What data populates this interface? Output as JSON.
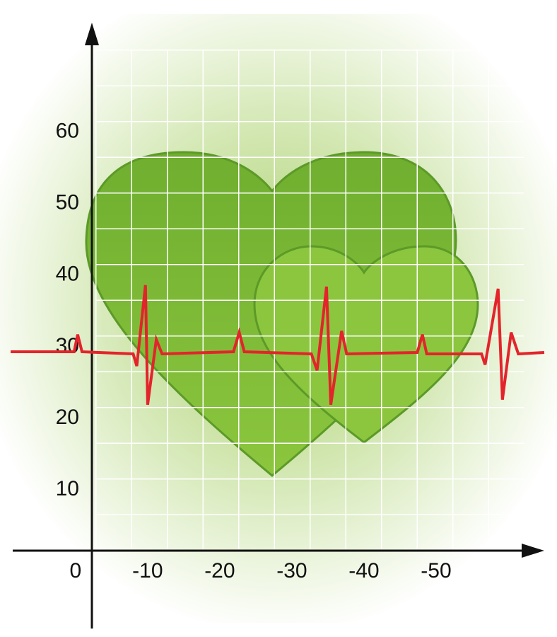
{
  "chart_data": {
    "type": "line",
    "xlim": [
      9,
      -65
    ],
    "ylim": [
      1.5,
      74.5
    ],
    "xticks": [
      0,
      -10,
      -20,
      -30,
      -40,
      -50
    ],
    "yticks": [
      10,
      20,
      30,
      40,
      50,
      60
    ],
    "series": [
      {
        "color": "#e3242b",
        "x": [
          9.0,
          0.2,
          -0.3,
          -0.9,
          -8.0,
          -8.5,
          -9.7,
          -10.0,
          -11.2,
          -12.0,
          -21.9,
          -22.7,
          -23.4,
          -32.7,
          -33.5,
          -34.8,
          -35.4,
          -36.9,
          -37.6,
          -47.4,
          -48.1,
          -48.7,
          -56.3,
          -56.8,
          -58.6,
          -59.2,
          -60.4,
          -61.4,
          -65.0
        ],
        "values": [
          29.3,
          29.3,
          31.7,
          29.3,
          29.0,
          27.3,
          38.6,
          21.9,
          31.0,
          29.0,
          29.3,
          32.0,
          29.3,
          29.0,
          26.7,
          38.4,
          21.9,
          32.2,
          29.0,
          29.2,
          31.7,
          29.0,
          29.0,
          27.5,
          38.1,
          22.6,
          32.0,
          29.0,
          29.2
        ]
      }
    ]
  }
}
